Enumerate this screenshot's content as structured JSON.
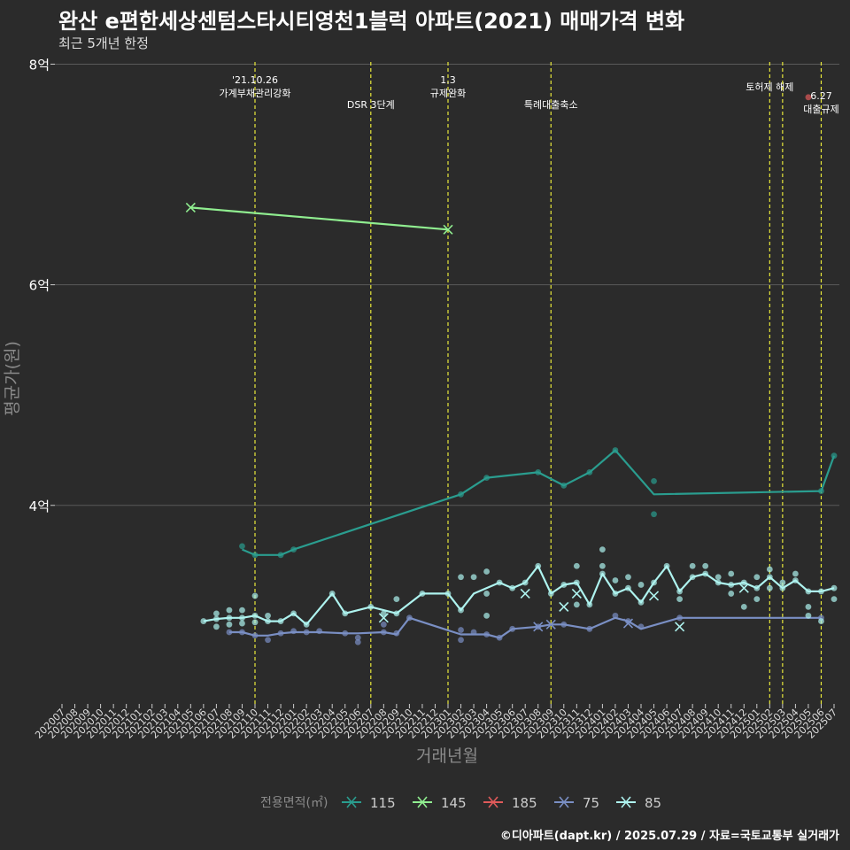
{
  "title": "완산 e편한세상센텀스타시티영천1블럭 아파트(2021) 매매가격 변화",
  "subtitle": "최근 5개년 한정",
  "caption": "©디아파트(dapt.kr) / 2025.07.29 / 자료=국토교통부 실거래가",
  "colors": {
    "115": "#2a9d8f",
    "145": "#90ee90",
    "185": "#e05a5a",
    "75": "#7a8fc4",
    "85": "#aef3ef",
    "grid": "#5a5a5a",
    "event_line": "#e8e83a",
    "text": "#ffffff",
    "axis_title": "#8a8a8a"
  },
  "chart_data": {
    "type": "line",
    "xlabel": "거래년월",
    "ylabel": "평균가(원)",
    "x": [
      "202007",
      "202008",
      "202009",
      "202010",
      "202011",
      "202012",
      "202101",
      "202102",
      "202103",
      "202104",
      "202105",
      "202106",
      "202107",
      "202108",
      "202109",
      "202110",
      "202111",
      "202112",
      "202201",
      "202202",
      "202203",
      "202204",
      "202205",
      "202206",
      "202207",
      "202208",
      "202209",
      "202210",
      "202211",
      "202212",
      "202301",
      "202302",
      "202303",
      "202304",
      "202305",
      "202306",
      "202307",
      "202308",
      "202309",
      "202310",
      "202311",
      "202312",
      "202401",
      "202402",
      "202403",
      "202404",
      "202405",
      "202406",
      "202407",
      "202408",
      "202409",
      "202410",
      "202411",
      "202412",
      "202501",
      "202502",
      "202503",
      "202504",
      "202505",
      "202506",
      "202507"
    ],
    "y_ticks": [
      {
        "value": 4,
        "label": "4억"
      },
      {
        "value": 6,
        "label": "6억"
      },
      {
        "value": 8,
        "label": "8억"
      }
    ],
    "ylim": [
      2.2,
      8.1
    ],
    "grid": true,
    "legend": {
      "title": "전용면적(㎡)",
      "position": "bottom",
      "entries": [
        "115",
        "145",
        "185",
        "75",
        "85"
      ]
    },
    "events": [
      {
        "x": "202110",
        "label": "'21.10.26\n가계부채관리강화"
      },
      {
        "x": "202207",
        "label": "DSR 3단계"
      },
      {
        "x": "202301",
        "label": "1.3\n규제완화"
      },
      {
        "x": "202309",
        "label": "특례대출축소"
      },
      {
        "x": "202502",
        "label": "토허제 해제"
      },
      {
        "x": "202503",
        "label": ""
      },
      {
        "x": "202506",
        "label": "6.27\n대출규제"
      }
    ],
    "series": [
      {
        "name": "115",
        "line": [
          [
            "202109",
            3.6
          ],
          [
            "202110",
            3.55
          ],
          [
            "202112",
            3.55
          ],
          [
            "202201",
            3.6
          ],
          [
            "202302",
            4.1
          ],
          [
            "202304",
            4.25
          ],
          [
            "202308",
            4.3
          ],
          [
            "202310",
            4.18
          ],
          [
            "202312",
            4.3
          ],
          [
            "202402",
            4.5
          ],
          [
            "202405",
            4.1
          ],
          [
            "202506",
            4.13
          ],
          [
            "202507",
            4.45
          ]
        ],
        "points": [
          [
            "202109",
            3.63
          ],
          [
            "202110",
            3.55
          ],
          [
            "202112",
            3.55
          ],
          [
            "202201",
            3.6
          ],
          [
            "202302",
            4.1
          ],
          [
            "202304",
            4.25
          ],
          [
            "202308",
            4.3
          ],
          [
            "202310",
            4.18
          ],
          [
            "202312",
            4.3
          ],
          [
            "202402",
            4.5
          ],
          [
            "202405",
            4.22
          ],
          [
            "202405",
            3.92
          ],
          [
            "202506",
            4.13
          ],
          [
            "202507",
            4.45
          ]
        ],
        "crosses": []
      },
      {
        "name": "145",
        "line": [
          [
            "202105",
            6.7
          ],
          [
            "202301",
            6.5
          ]
        ],
        "points": [],
        "crosses": [
          [
            "202105",
            6.7
          ],
          [
            "202301",
            6.5
          ]
        ]
      },
      {
        "name": "185",
        "line": [],
        "points": [
          [
            "202505",
            7.7
          ]
        ],
        "crosses": []
      },
      {
        "name": "75",
        "line": [
          [
            "202108",
            2.85
          ],
          [
            "202109",
            2.85
          ],
          [
            "202110",
            2.82
          ],
          [
            "202111",
            2.82
          ],
          [
            "202112",
            2.84
          ],
          [
            "202201",
            2.85
          ],
          [
            "202202",
            2.85
          ],
          [
            "202203",
            2.85
          ],
          [
            "202205",
            2.84
          ],
          [
            "202206",
            2.84
          ],
          [
            "202208",
            2.85
          ],
          [
            "202209",
            2.83
          ],
          [
            "202210",
            2.98
          ],
          [
            "202302",
            2.83
          ],
          [
            "202303",
            2.83
          ],
          [
            "202304",
            2.83
          ],
          [
            "202305",
            2.8
          ],
          [
            "202306",
            2.88
          ],
          [
            "202308",
            2.9
          ],
          [
            "202309",
            2.92
          ],
          [
            "202310",
            2.92
          ],
          [
            "202312",
            2.88
          ],
          [
            "202402",
            2.98
          ],
          [
            "202403",
            2.95
          ],
          [
            "202404",
            2.88
          ],
          [
            "202407",
            2.98
          ],
          [
            "202506",
            2.98
          ]
        ],
        "points": [
          [
            "202108",
            2.85
          ],
          [
            "202109",
            2.85
          ],
          [
            "202110",
            2.82
          ],
          [
            "202111",
            2.78
          ],
          [
            "202112",
            2.84
          ],
          [
            "202201",
            2.86
          ],
          [
            "202202",
            2.85
          ],
          [
            "202203",
            2.86
          ],
          [
            "202205",
            2.84
          ],
          [
            "202206",
            2.8
          ],
          [
            "202206",
            2.76
          ],
          [
            "202208",
            2.85
          ],
          [
            "202208",
            2.92
          ],
          [
            "202209",
            2.84
          ],
          [
            "202210",
            2.98
          ],
          [
            "202302",
            2.87
          ],
          [
            "202302",
            2.78
          ],
          [
            "202303",
            2.85
          ],
          [
            "202304",
            2.83
          ],
          [
            "202305",
            2.8
          ],
          [
            "202306",
            2.88
          ],
          [
            "202308",
            2.9
          ],
          [
            "202310",
            2.92
          ],
          [
            "202312",
            2.88
          ],
          [
            "202402",
            3.0
          ],
          [
            "202403",
            2.95
          ],
          [
            "202404",
            2.9
          ],
          [
            "202407",
            2.98
          ],
          [
            "202506",
            2.98
          ]
        ],
        "crosses": [
          [
            "202308",
            2.9
          ],
          [
            "202309",
            2.92
          ],
          [
            "202403",
            2.93
          ]
        ]
      },
      {
        "name": "85",
        "line": [
          [
            "202106",
            2.95
          ],
          [
            "202107",
            2.97
          ],
          [
            "202108",
            2.98
          ],
          [
            "202109",
            2.98
          ],
          [
            "202110",
            3.0
          ],
          [
            "202111",
            2.95
          ],
          [
            "202112",
            2.95
          ],
          [
            "202201",
            3.02
          ],
          [
            "202202",
            2.92
          ],
          [
            "202204",
            3.2
          ],
          [
            "202205",
            3.02
          ],
          [
            "202207",
            3.08
          ],
          [
            "202209",
            3.02
          ],
          [
            "202211",
            3.2
          ],
          [
            "202301",
            3.2
          ],
          [
            "202302",
            3.05
          ],
          [
            "202303",
            3.2
          ],
          [
            "202305",
            3.3
          ],
          [
            "202306",
            3.25
          ],
          [
            "202307",
            3.3
          ],
          [
            "202308",
            3.45
          ],
          [
            "202309",
            3.2
          ],
          [
            "202310",
            3.28
          ],
          [
            "202311",
            3.3
          ],
          [
            "202312",
            3.1
          ],
          [
            "202401",
            3.38
          ],
          [
            "202402",
            3.2
          ],
          [
            "202403",
            3.25
          ],
          [
            "202404",
            3.12
          ],
          [
            "202405",
            3.3
          ],
          [
            "202406",
            3.45
          ],
          [
            "202407",
            3.22
          ],
          [
            "202408",
            3.35
          ],
          [
            "202409",
            3.38
          ],
          [
            "202410",
            3.3
          ],
          [
            "202411",
            3.28
          ],
          [
            "202412",
            3.3
          ],
          [
            "202501",
            3.25
          ],
          [
            "202502",
            3.35
          ],
          [
            "202503",
            3.25
          ],
          [
            "202504",
            3.32
          ],
          [
            "202505",
            3.22
          ],
          [
            "202506",
            3.22
          ],
          [
            "202507",
            3.25
          ]
        ],
        "points": [
          [
            "202106",
            2.95
          ],
          [
            "202107",
            2.97
          ],
          [
            "202107",
            3.02
          ],
          [
            "202107",
            2.9
          ],
          [
            "202108",
            2.98
          ],
          [
            "202108",
            3.05
          ],
          [
            "202108",
            2.92
          ],
          [
            "202109",
            2.98
          ],
          [
            "202109",
            3.05
          ],
          [
            "202109",
            2.93
          ],
          [
            "202110",
            3.0
          ],
          [
            "202110",
            3.18
          ],
          [
            "202110",
            2.94
          ],
          [
            "202111",
            2.95
          ],
          [
            "202111",
            3.0
          ],
          [
            "202112",
            2.95
          ],
          [
            "202201",
            3.02
          ],
          [
            "202202",
            2.92
          ],
          [
            "202204",
            3.2
          ],
          [
            "202205",
            3.02
          ],
          [
            "202207",
            3.08
          ],
          [
            "202208",
            3.02
          ],
          [
            "202209",
            3.02
          ],
          [
            "202209",
            3.15
          ],
          [
            "202211",
            3.2
          ],
          [
            "202301",
            3.2
          ],
          [
            "202302",
            3.35
          ],
          [
            "202302",
            3.05
          ],
          [
            "202303",
            3.35
          ],
          [
            "202304",
            3.4
          ],
          [
            "202304",
            3.2
          ],
          [
            "202304",
            3.0
          ],
          [
            "202305",
            3.3
          ],
          [
            "202306",
            3.25
          ],
          [
            "202307",
            3.3
          ],
          [
            "202308",
            3.45
          ],
          [
            "202309",
            3.2
          ],
          [
            "202310",
            3.28
          ],
          [
            "202311",
            3.45
          ],
          [
            "202311",
            3.3
          ],
          [
            "202311",
            3.1
          ],
          [
            "202312",
            3.1
          ],
          [
            "202401",
            3.6
          ],
          [
            "202401",
            3.45
          ],
          [
            "202401",
            3.38
          ],
          [
            "202402",
            3.2
          ],
          [
            "202402",
            3.32
          ],
          [
            "202403",
            3.25
          ],
          [
            "202403",
            3.35
          ],
          [
            "202404",
            3.12
          ],
          [
            "202404",
            3.28
          ],
          [
            "202405",
            3.3
          ],
          [
            "202406",
            3.45
          ],
          [
            "202407",
            3.22
          ],
          [
            "202407",
            3.15
          ],
          [
            "202408",
            3.35
          ],
          [
            "202408",
            3.45
          ],
          [
            "202409",
            3.38
          ],
          [
            "202409",
            3.45
          ],
          [
            "202410",
            3.3
          ],
          [
            "202410",
            3.35
          ],
          [
            "202411",
            3.28
          ],
          [
            "202411",
            3.38
          ],
          [
            "202411",
            3.2
          ],
          [
            "202412",
            3.3
          ],
          [
            "202412",
            3.08
          ],
          [
            "202501",
            3.25
          ],
          [
            "202501",
            3.35
          ],
          [
            "202501",
            3.15
          ],
          [
            "202502",
            3.35
          ],
          [
            "202502",
            3.42
          ],
          [
            "202502",
            3.25
          ],
          [
            "202503",
            3.25
          ],
          [
            "202503",
            3.3
          ],
          [
            "202504",
            3.32
          ],
          [
            "202504",
            3.38
          ],
          [
            "202505",
            3.22
          ],
          [
            "202505",
            3.08
          ],
          [
            "202505",
            3.0
          ],
          [
            "202506",
            3.22
          ],
          [
            "202506",
            2.95
          ],
          [
            "202507",
            3.25
          ],
          [
            "202507",
            3.15
          ]
        ],
        "crosses": [
          [
            "202208",
            2.98
          ],
          [
            "202307",
            3.2
          ],
          [
            "202310",
            3.08
          ],
          [
            "202311",
            3.2
          ],
          [
            "202405",
            3.18
          ],
          [
            "202407",
            2.9
          ],
          [
            "202412",
            3.25
          ]
        ]
      }
    ]
  }
}
